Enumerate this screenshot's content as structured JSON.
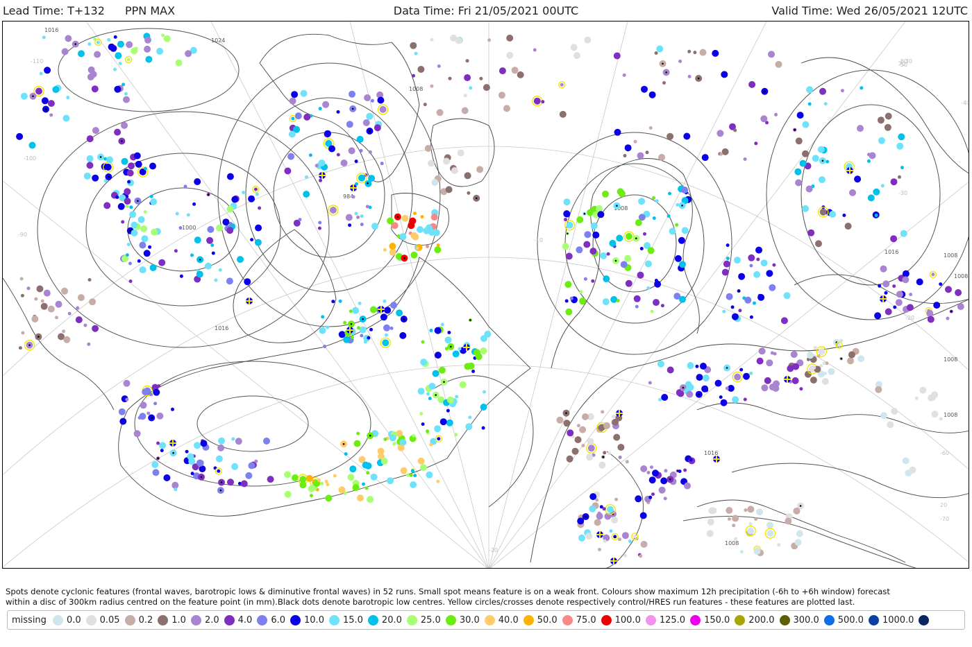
{
  "header": {
    "lead_time": "Lead Time: T+132",
    "product": "PPN MAX",
    "data_time": "Data Time: Fri 21/05/2021 00UTC",
    "valid_time": "Valid Time: Wed 26/05/2021 12UTC"
  },
  "map": {
    "isobar_labels": [
      "1016",
      "1024",
      "1008",
      "1000",
      "984",
      "1008",
      "1016",
      "1016",
      "1008",
      "1008",
      "1016",
      "1008",
      "1008",
      "1016",
      "1008"
    ],
    "graticule_labels": [
      "-10",
      "-20",
      "-110",
      "-100",
      "-90",
      "-80",
      "-70",
      "-60",
      "-50",
      "-40",
      "-30",
      "-20",
      "20",
      "30",
      "70"
    ],
    "colors": {
      "isobar": "#555555",
      "coast": "#444444",
      "graticule": "#c8c8c8"
    }
  },
  "caption": {
    "line1": "Spots denote cyclonic features (frontal waves, barotropic lows & diminutive frontal waves) in 52 runs. Small spot means feature is on a weak front. Colours show maximum 12h precipitation (-6h to +6h window) forecast",
    "line2": "within a disc of 300km radius centred on the feature point (in mm).Black dots denote barotropic low centres. Yellow circles/crosses denote respectively control/HRES run features - these features are plotted last."
  },
  "legend": {
    "missing_label": "missing",
    "items": [
      {
        "label": "0.0",
        "color": "#cfe6ef"
      },
      {
        "label": "0.05",
        "color": "#e0e0e0"
      },
      {
        "label": "0.2",
        "color": "#c8aca7"
      },
      {
        "label": "1.0",
        "color": "#8b706d"
      },
      {
        "label": "2.0",
        "color": "#a884d1"
      },
      {
        "label": "4.0",
        "color": "#7f2fc0"
      },
      {
        "label": "6.0",
        "color": "#7f80f0"
      },
      {
        "label": "10.0",
        "color": "#0c00e6"
      },
      {
        "label": "15.0",
        "color": "#6ee2fa"
      },
      {
        "label": "20.0",
        "color": "#00c1e9"
      },
      {
        "label": "25.0",
        "color": "#a8ff73"
      },
      {
        "label": "30.0",
        "color": "#6ced10"
      },
      {
        "label": "40.0",
        "color": "#ffcc6b"
      },
      {
        "label": "50.0",
        "color": "#ffb300"
      },
      {
        "label": "75.0",
        "color": "#f98989"
      },
      {
        "label": "100.0",
        "color": "#ee0000"
      },
      {
        "label": "125.0",
        "color": "#f291ee"
      },
      {
        "label": "150.0",
        "color": "#ee00ee"
      },
      {
        "label": "200.0",
        "color": "#a6a600"
      },
      {
        "label": "300.0",
        "color": "#5e5e00"
      },
      {
        "label": "500.0",
        "color": "#0d6ee8"
      },
      {
        "label": "1000.0",
        "color": "#0a3fa3"
      },
      {
        "label": "",
        "color": "#0b2560"
      }
    ]
  }
}
